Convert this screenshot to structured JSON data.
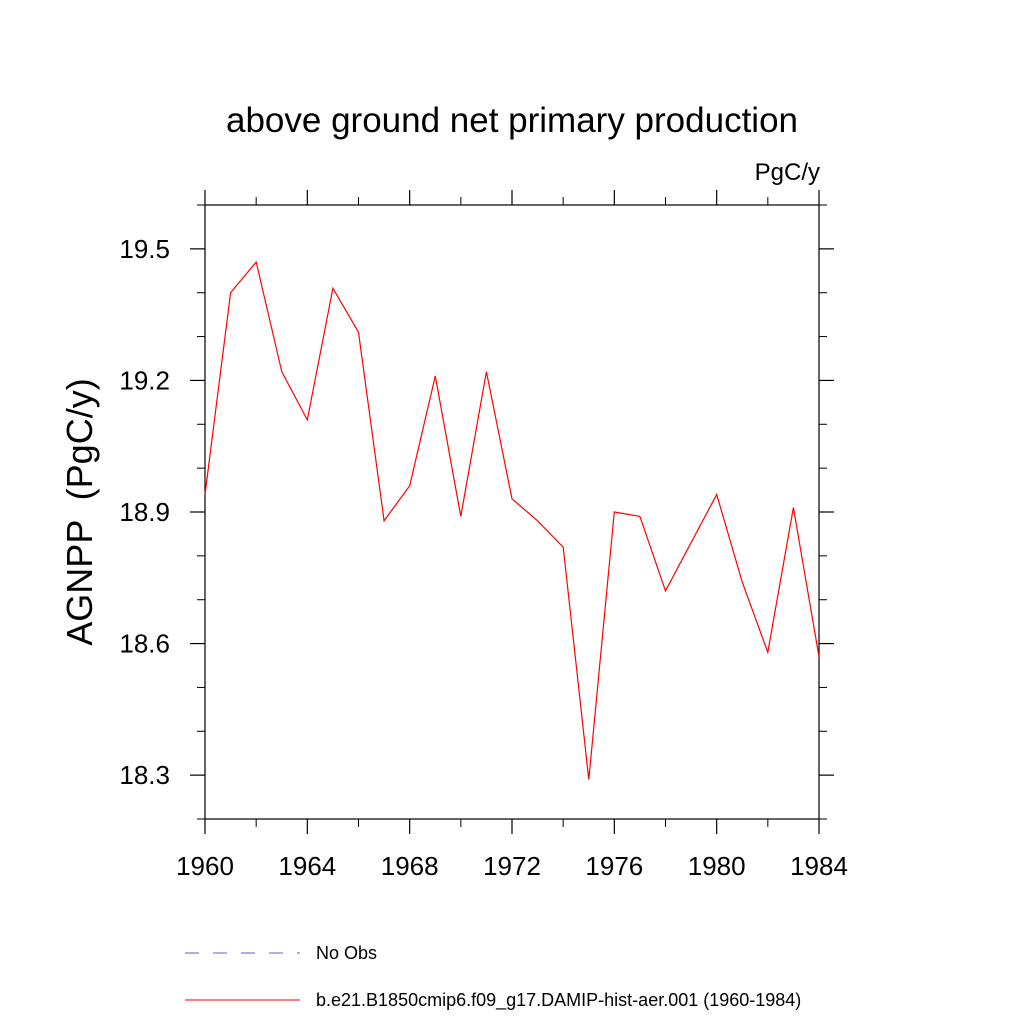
{
  "chart_data": {
    "type": "line",
    "title": "above ground net primary production",
    "units": "PgC/y",
    "ylabel": "AGNPP  (PgC/y)",
    "xlabel": "",
    "xlim": [
      1960,
      1984
    ],
    "ylim": [
      18.2,
      19.6
    ],
    "x_ticks": [
      1960,
      1964,
      1968,
      1972,
      1976,
      1980,
      1984
    ],
    "x_minor_ticks": [
      1962,
      1966,
      1970,
      1974,
      1978,
      1982
    ],
    "y_ticks": [
      18.3,
      18.6,
      18.9,
      19.2,
      19.5
    ],
    "y_tick_labels": [
      "18.3",
      "18.6",
      "18.9",
      "19.2",
      "19.5"
    ],
    "y_minor_ticks": [
      18.2,
      18.4,
      18.5,
      18.7,
      18.8,
      19.0,
      19.1,
      19.3,
      19.4,
      19.6
    ],
    "grid": false,
    "legend_position": "bottom",
    "series": [
      {
        "name": "b.e21.B1850cmip6.f09_g17.DAMIP-hist-aer.001 (1960-1984)",
        "color": "#ff0000",
        "style": "solid",
        "x": [
          1960,
          1961,
          1962,
          1963,
          1964,
          1965,
          1966,
          1967,
          1968,
          1969,
          1970,
          1971,
          1972,
          1973,
          1974,
          1975,
          1976,
          1977,
          1978,
          1979,
          1980,
          1981,
          1982,
          1983,
          1984
        ],
        "y": [
          18.94,
          19.4,
          19.47,
          19.22,
          19.11,
          19.41,
          19.31,
          18.88,
          18.96,
          19.21,
          18.89,
          19.22,
          18.93,
          18.88,
          18.82,
          18.29,
          18.9,
          18.89,
          18.72,
          18.83,
          18.94,
          18.74,
          18.58,
          18.91,
          18.57
        ]
      }
    ],
    "legend": [
      {
        "label": "No Obs",
        "color": "#6a5acd",
        "style": "dashed"
      },
      {
        "label": "b.e21.B1850cmip6.f09_g17.DAMIP-hist-aer.001 (1960-1984)",
        "color": "#ff0000",
        "style": "solid"
      }
    ]
  }
}
